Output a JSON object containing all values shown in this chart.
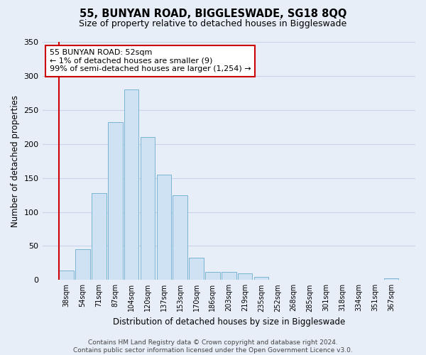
{
  "title": "55, BUNYAN ROAD, BIGGLESWADE, SG18 8QQ",
  "subtitle": "Size of property relative to detached houses in Biggleswade",
  "xlabel": "Distribution of detached houses by size in Biggleswade",
  "ylabel": "Number of detached properties",
  "bar_labels": [
    "38sqm",
    "54sqm",
    "71sqm",
    "87sqm",
    "104sqm",
    "120sqm",
    "137sqm",
    "153sqm",
    "170sqm",
    "186sqm",
    "203sqm",
    "219sqm",
    "235sqm",
    "252sqm",
    "268sqm",
    "285sqm",
    "301sqm",
    "318sqm",
    "334sqm",
    "351sqm",
    "367sqm"
  ],
  "bar_heights": [
    14,
    45,
    128,
    232,
    280,
    210,
    155,
    125,
    33,
    12,
    12,
    10,
    5,
    0,
    0,
    0,
    0,
    0,
    0,
    0,
    2
  ],
  "bar_color": "#cfe2f3",
  "bar_edge_color": "#7ab4d4",
  "highlight_color": "#cc0000",
  "annotation_line1": "55 BUNYAN ROAD: 52sqm",
  "annotation_line2": "← 1% of detached houses are smaller (9)",
  "annotation_line3": "99% of semi-detached houses are larger (1,254) →",
  "annotation_box_facecolor": "#ffffff",
  "annotation_box_edgecolor": "#cc0000",
  "ylim": [
    0,
    350
  ],
  "yticks": [
    0,
    50,
    100,
    150,
    200,
    250,
    300,
    350
  ],
  "footer_line1": "Contains HM Land Registry data © Crown copyright and database right 2024.",
  "footer_line2": "Contains public sector information licensed under the Open Government Licence v3.0.",
  "bg_color": "#e8eef8",
  "grid_color": "#c8d4e8",
  "title_fontsize": 10.5,
  "subtitle_fontsize": 9,
  "axis_label_fontsize": 8.5,
  "tick_fontsize": 7,
  "annotation_fontsize": 8,
  "footer_fontsize": 6.5
}
